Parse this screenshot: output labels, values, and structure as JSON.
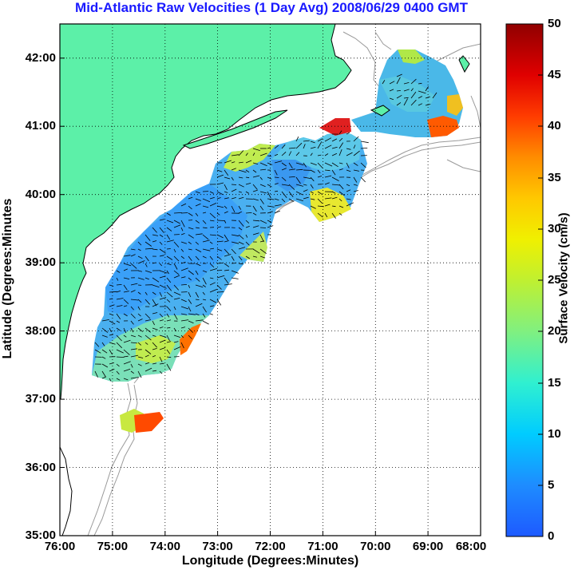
{
  "title": "Mid-Atlantic Raw Velocities (1 Day Avg) 2008/06/29 0400 GMT",
  "x_axis": {
    "label": "Longitude (Degrees:Minutes)",
    "ticks": [
      "76:00",
      "75:00",
      "74:00",
      "73:00",
      "72:00",
      "71:00",
      "70:00",
      "69:00",
      "68:00"
    ],
    "range_deg_west": [
      76,
      68
    ]
  },
  "y_axis": {
    "label": "Latitude (Degrees:Minutes",
    "ticks": [
      "35:00",
      "36:00",
      "37:00",
      "38:00",
      "39:00",
      "40:00",
      "41:00",
      "42:00"
    ],
    "range_deg_north": [
      35,
      42.5
    ]
  },
  "colorbar": {
    "label": "Surface Velocity (cm/s)",
    "ticks": [
      "0",
      "5",
      "10",
      "15",
      "20",
      "25",
      "30",
      "35",
      "40",
      "45",
      "50"
    ],
    "range": [
      0,
      50
    ],
    "colormap": "jet"
  },
  "grid": "dotted",
  "colors": {
    "land": "#5cf0a8",
    "title": "#1a1aff",
    "coastline": "#000000",
    "bathymetry": "#9a9a9a"
  }
}
